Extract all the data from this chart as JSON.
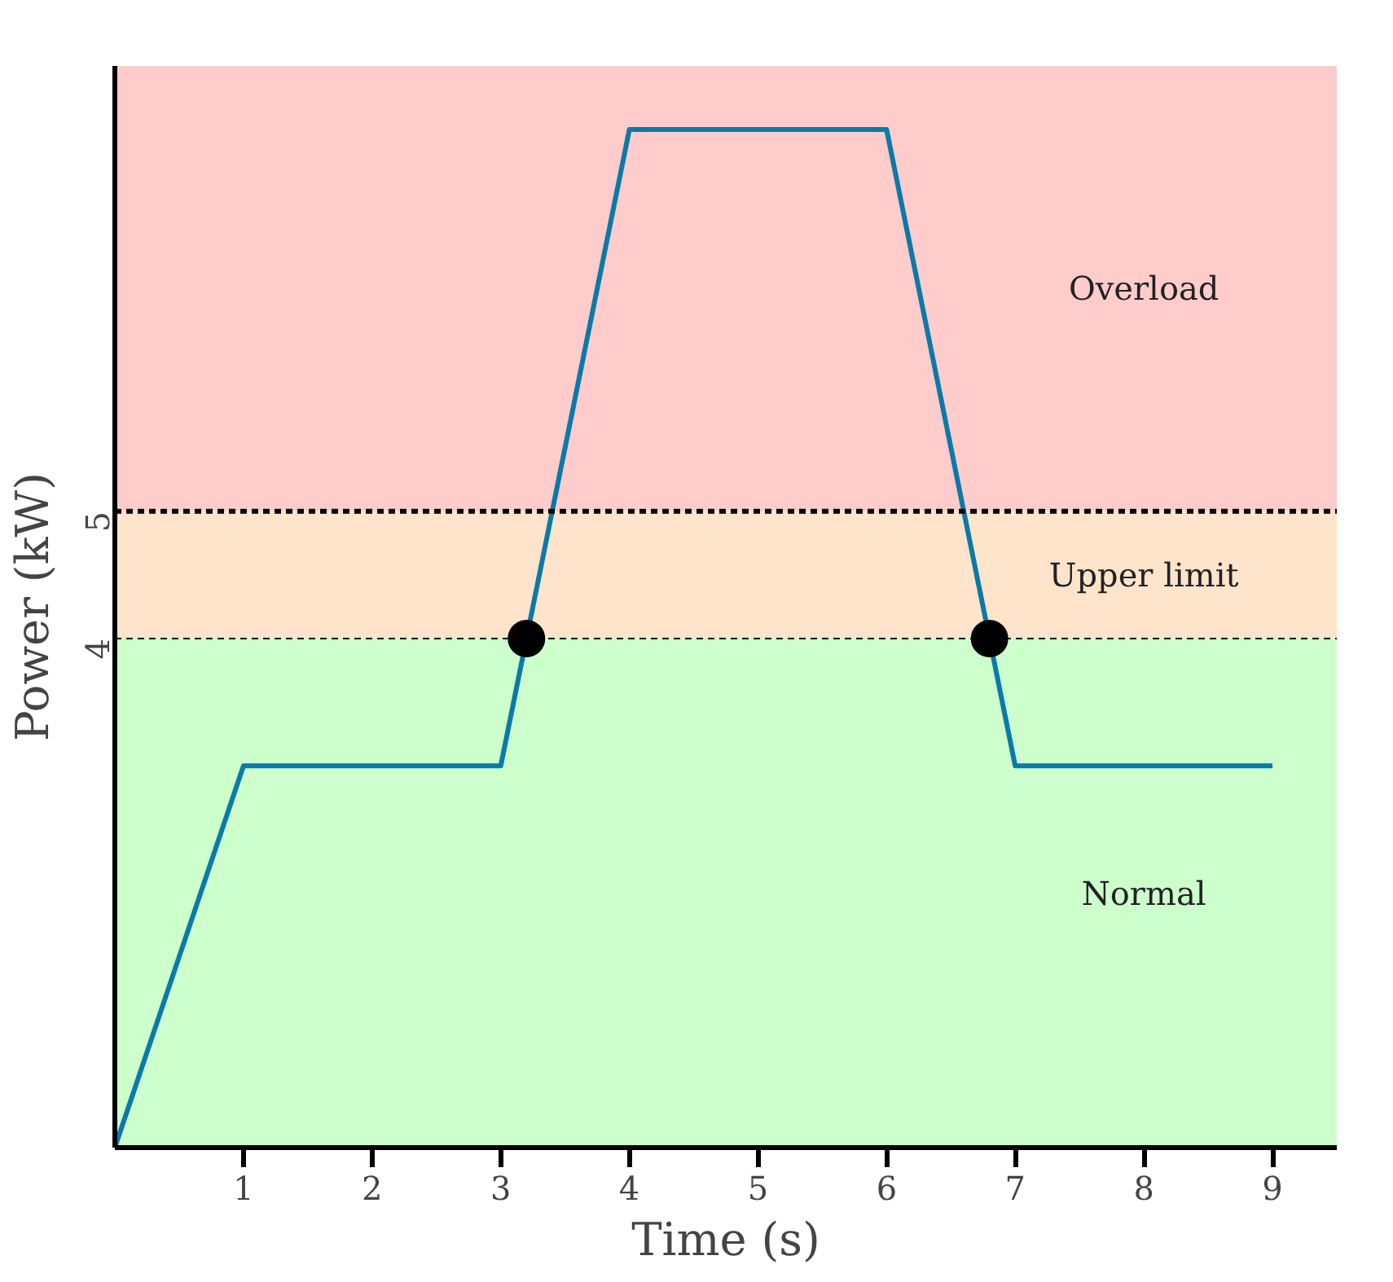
{
  "chart_data": {
    "type": "line",
    "xlabel": "Time (s)",
    "ylabel": "Power (kW)",
    "xlim": [
      0,
      9.5
    ],
    "ylim": [
      0,
      8.5
    ],
    "xticks": [
      1,
      2,
      3,
      4,
      5,
      6,
      7,
      8,
      9
    ],
    "yticks": [
      4,
      5
    ],
    "marker": "none",
    "line_style": "solid",
    "series": [
      {
        "color": "#0a7aa8",
        "x": [
          0,
          1,
          3,
          4,
          6,
          7,
          9
        ],
        "values": [
          0,
          3,
          3,
          8,
          8,
          3,
          3
        ]
      },
      {
        "type": "scatter",
        "color": "#000000",
        "x": [
          3.2,
          6.8
        ],
        "values": [
          4,
          4
        ],
        "marker": "circle"
      }
    ],
    "bands": [
      {
        "axis": "y",
        "from": 0,
        "to": 4,
        "label": "Normal",
        "color": "#ccffcc"
      },
      {
        "axis": "y",
        "from": 4,
        "to": 5,
        "label": "Upper limit",
        "color": "#ffe4cc"
      },
      {
        "axis": "y",
        "from": 5,
        "to": 8.5,
        "label": "Overload",
        "color": "#ffcccc"
      }
    ],
    "ref_lines": [
      {
        "axis": "y",
        "value": 5,
        "label": null,
        "color": "#000000",
        "line_style": "dashed"
      },
      {
        "axis": "y",
        "value": 4,
        "label": null,
        "color": "#000000",
        "line_style": "dashed"
      }
    ]
  }
}
